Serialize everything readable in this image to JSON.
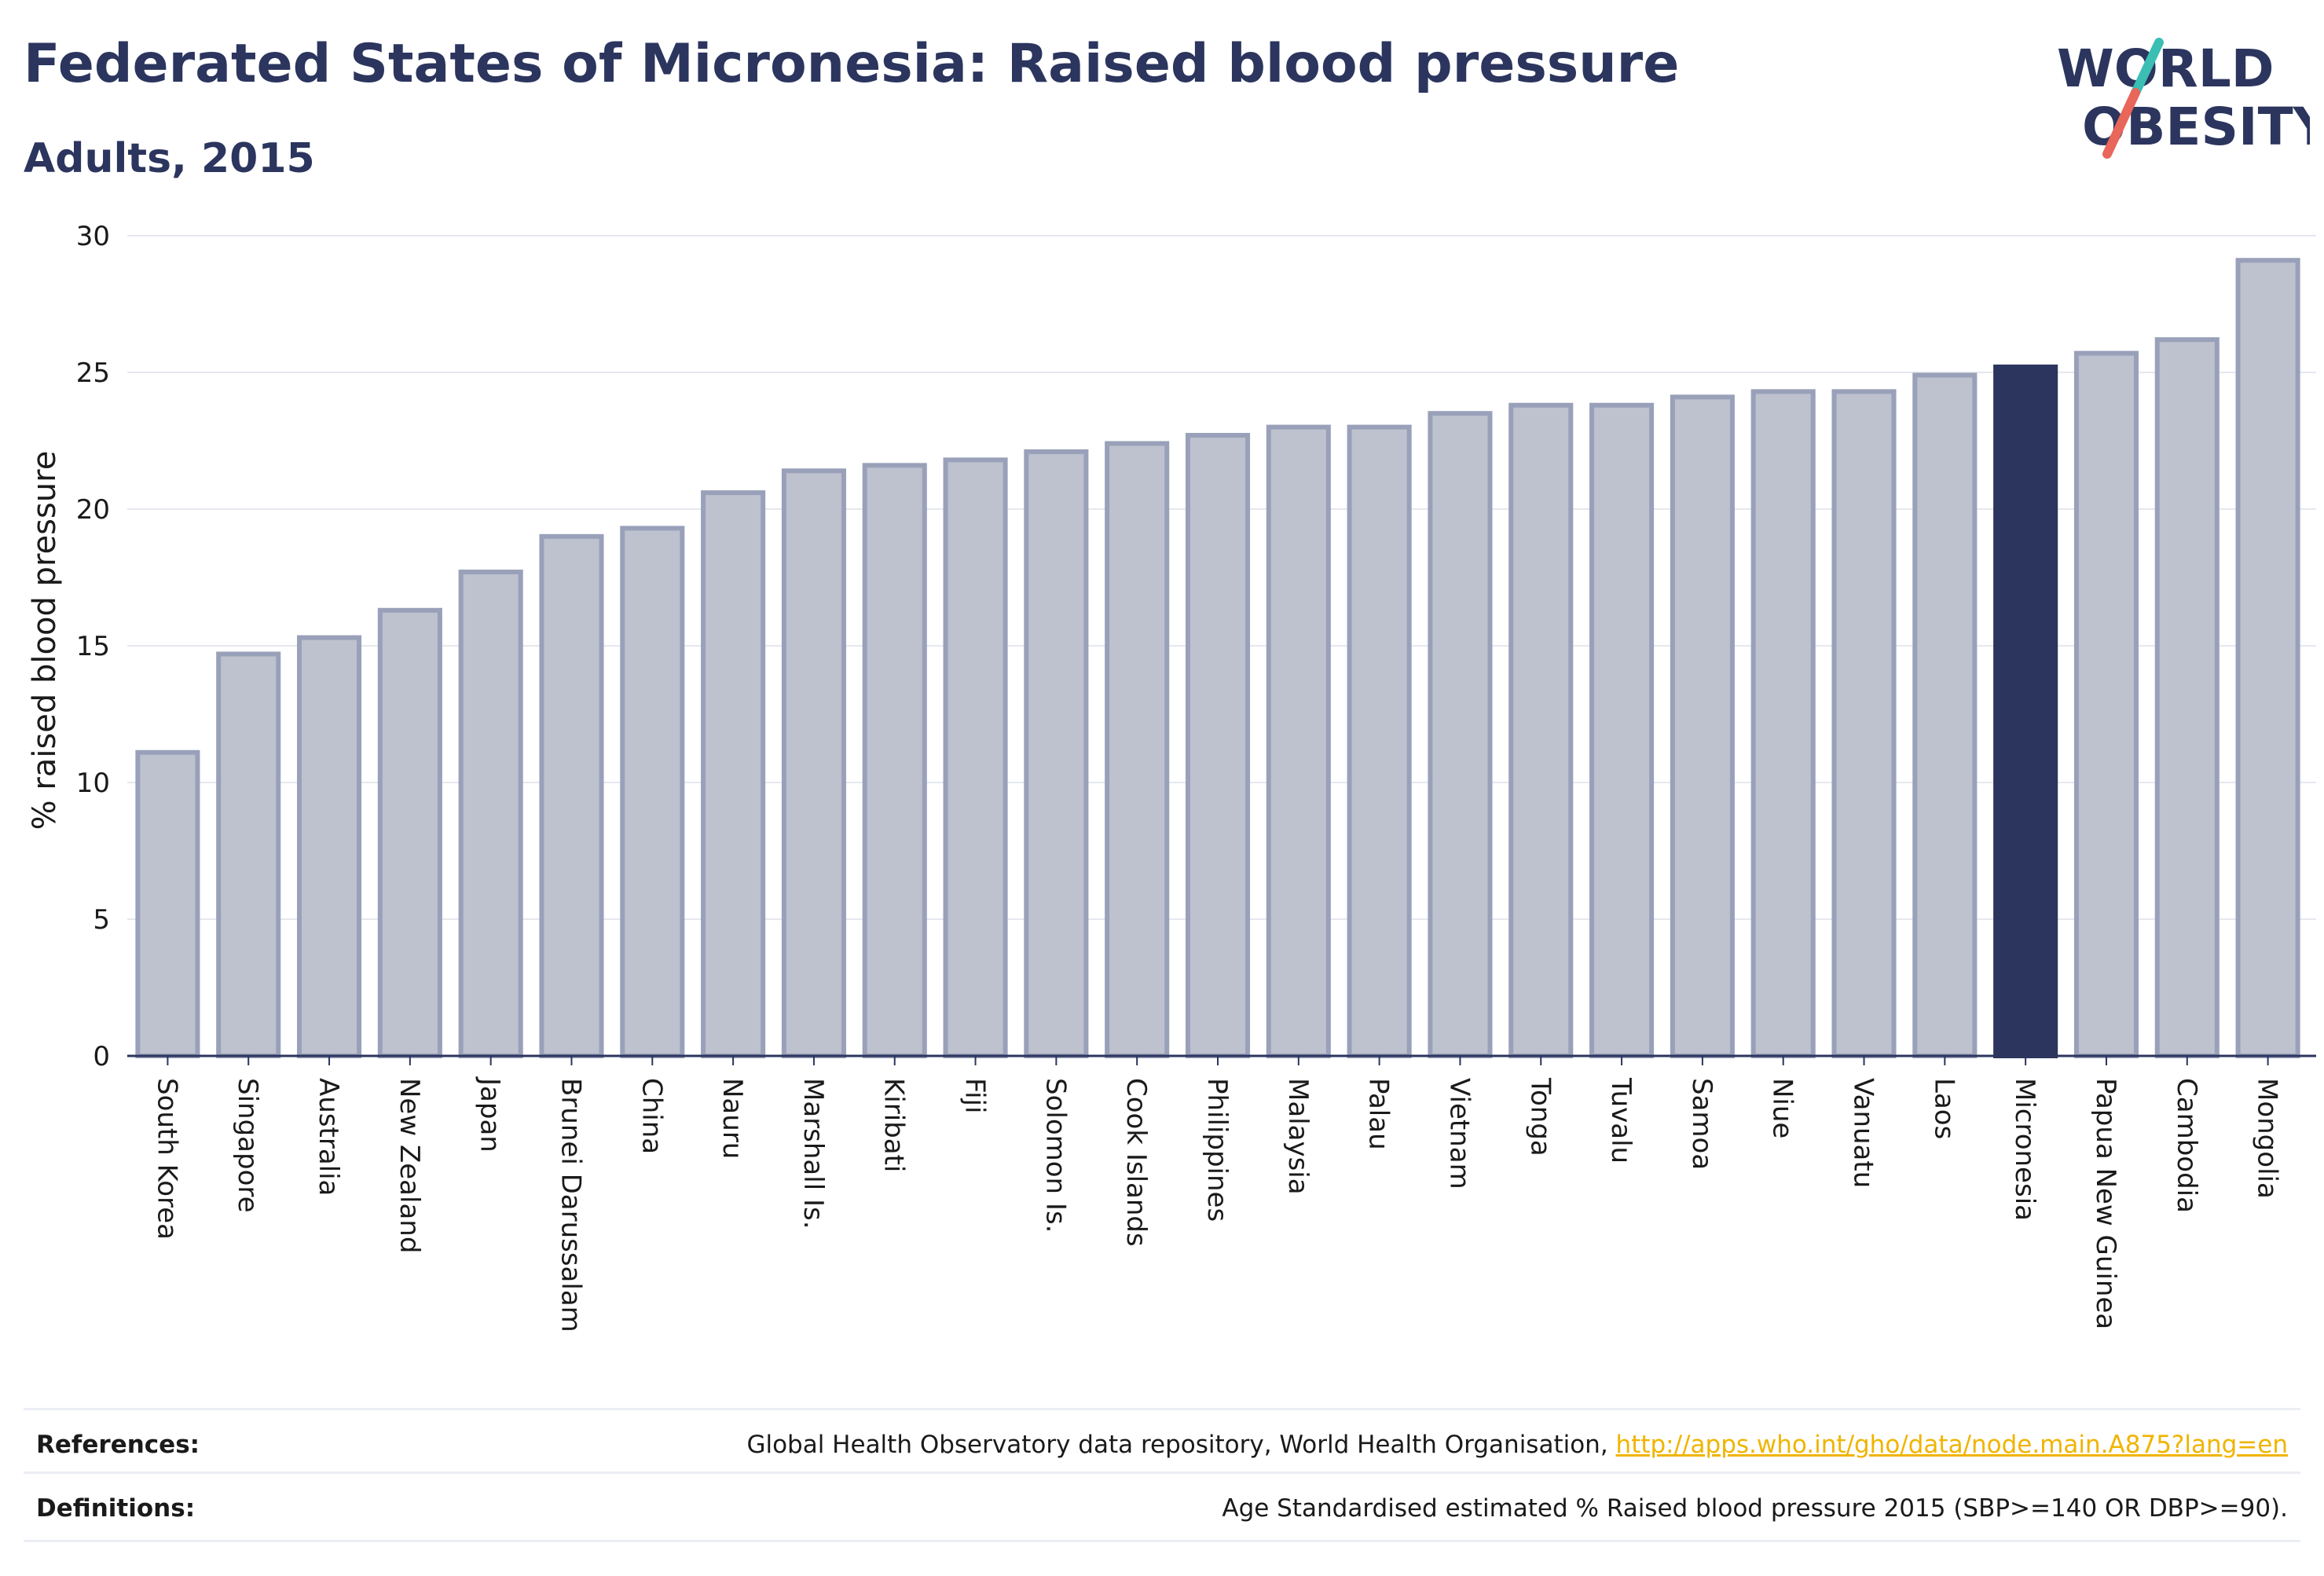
{
  "header": {
    "title": "Federated States of Micronesia: Raised blood pressure",
    "subtitle": "Adults, 2015"
  },
  "logo": {
    "line1": "WORLD",
    "line2": "OBESITY",
    "colors": {
      "text": "#2b355e",
      "slash_top": "#3bbfb5",
      "slash_bottom": "#e8665a"
    }
  },
  "chart_data": {
    "type": "bar",
    "title": "Federated States of Micronesia: Raised blood pressure",
    "subtitle": "Adults, 2015",
    "xlabel": "",
    "ylabel": "% raised blood pressure",
    "ylim": [
      0,
      30
    ],
    "yticks": [
      0,
      5,
      10,
      15,
      20,
      25,
      30
    ],
    "grid": true,
    "categories": [
      "South Korea",
      "Singapore",
      "Australia",
      "New Zealand",
      "Japan",
      "Brunei Darussalam",
      "China",
      "Nauru",
      "Marshall Is.",
      "Kiribati",
      "Fiji",
      "Solomon Is.",
      "Cook Islands",
      "Philippines",
      "Malaysia",
      "Palau",
      "Vietnam",
      "Tonga",
      "Tuvalu",
      "Samoa",
      "Niue",
      "Vanuatu",
      "Laos",
      "Micronesia",
      "Papua New Guinea",
      "Cambodia",
      "Mongolia"
    ],
    "values": [
      11.1,
      14.7,
      15.3,
      16.3,
      17.7,
      19.0,
      19.3,
      20.6,
      21.4,
      21.6,
      21.8,
      22.1,
      22.4,
      22.7,
      23.0,
      23.0,
      23.5,
      23.8,
      23.8,
      24.1,
      24.3,
      24.3,
      24.9,
      25.2,
      25.7,
      26.2,
      29.1
    ],
    "highlight": "Micronesia",
    "colors": {
      "bar": "#bec1ce",
      "bar_edge": "#99a0b9",
      "highlight": "#2b355e",
      "grid": "#e6e8ef",
      "axis": "#2b355e"
    }
  },
  "footer": {
    "references_label": "References:",
    "references_text": "Global Health Observatory data repository, World Health Organisation,",
    "references_link": "http://apps.who.int/gho/data/node.main.A875?lang=en",
    "definitions_label": "Definitions:",
    "definitions_text": "Age Standardised estimated % Raised blood pressure 2015 (SBP>=140 OR DBP>=90)."
  }
}
